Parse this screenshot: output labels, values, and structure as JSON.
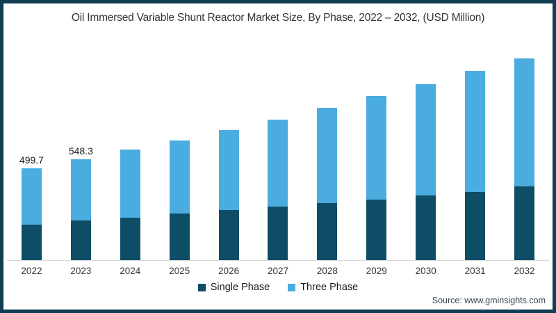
{
  "frame": {
    "title": "Oil Immersed Variable Shunt Reactor Market Size, By Phase, 2022 – 2032, (USD Million)",
    "source": "Source: www.gminsights.com"
  },
  "legend": {
    "items": [
      {
        "label": "Single Phase",
        "color": "#0d4d66"
      },
      {
        "label": "Three Phase",
        "color": "#4aacdf"
      }
    ]
  },
  "chart_data": {
    "type": "bar",
    "stacked": true,
    "title": "Oil Immersed Variable Shunt Reactor Market Size, By Phase, 2022 – 2032, (USD Million)",
    "unit": "USD Million",
    "categories": [
      "2022",
      "2023",
      "2024",
      "2025",
      "2026",
      "2027",
      "2028",
      "2029",
      "2030",
      "2031",
      "2032"
    ],
    "series": [
      {
        "name": "Single Phase",
        "color": "#0d4d66",
        "values": [
          194,
          215,
          232,
          252,
          271,
          290,
          309,
          328,
          353,
          372,
          400
        ]
      },
      {
        "name": "Three Phase",
        "color": "#4aacdf",
        "values": [
          305.7,
          333.3,
          369,
          400,
          437,
          475,
          520,
          564,
          606,
          656,
          698
        ]
      }
    ],
    "totals": [
      499.7,
      548.3,
      601,
      652,
      708,
      765,
      829,
      892,
      959,
      1028,
      1098
    ],
    "bar_total_labels": [
      "499.7",
      "548.3",
      "",
      "",
      "",
      "",
      "",
      "",
      "",
      "",
      ""
    ],
    "xlabel": "",
    "ylabel": "",
    "ylim": [
      0,
      1150
    ],
    "grid": false,
    "legend_position": "bottom"
  }
}
